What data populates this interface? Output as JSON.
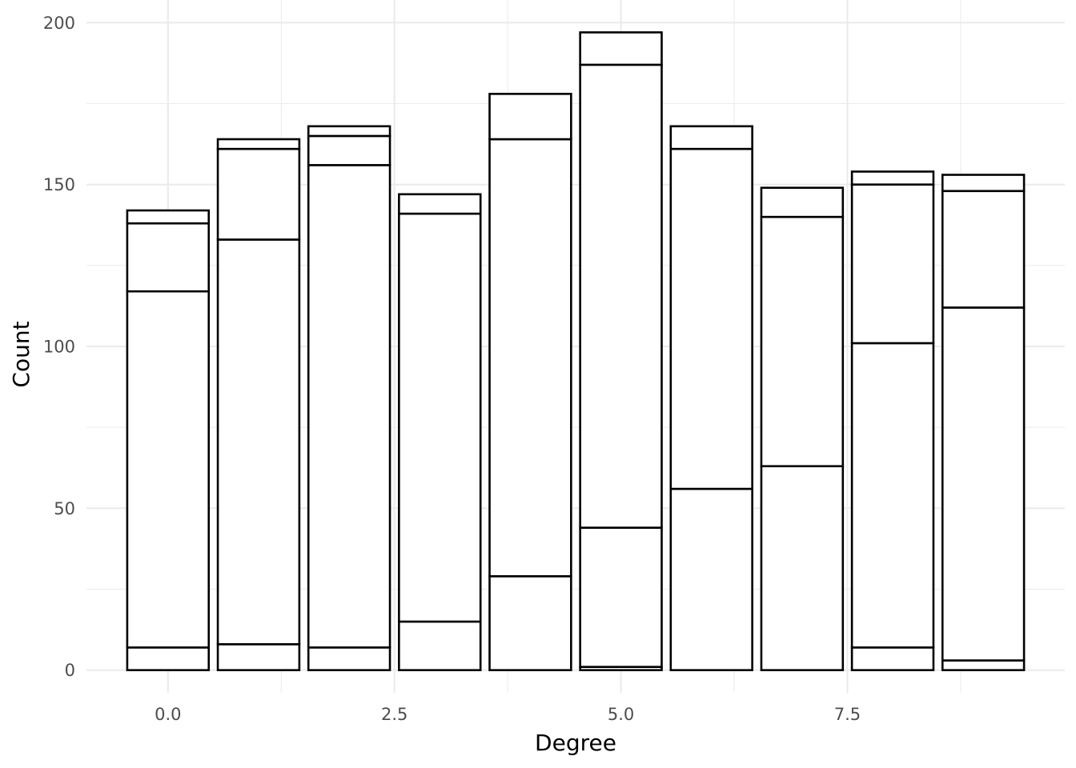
{
  "chart_data": {
    "type": "bar",
    "stacked": true,
    "xlabel": "Degree",
    "ylabel": "Count",
    "xlim": [
      -0.9,
      9.9
    ],
    "ylim": [
      -7,
      207
    ],
    "x_ticks": [
      "0.0",
      "2.5",
      "5.0",
      "7.5"
    ],
    "y_ticks": [
      "0",
      "50",
      "100",
      "150",
      "200"
    ],
    "grid": true,
    "legend": "none",
    "bar_fill": "#ffffff",
    "bar_outline": "#000000",
    "x": [
      0,
      1,
      2,
      3,
      4,
      5,
      6,
      7,
      8,
      9
    ],
    "stack_boundaries": [
      [
        0,
        7,
        117,
        138,
        142
      ],
      [
        0,
        8,
        133,
        161,
        164
      ],
      [
        0,
        7,
        156,
        165,
        168
      ],
      [
        0,
        15,
        141,
        147
      ],
      [
        0,
        29,
        164,
        178
      ],
      [
        0,
        1,
        44,
        187,
        197
      ],
      [
        0,
        56,
        161,
        168
      ],
      [
        0,
        63,
        140,
        149
      ],
      [
        0,
        7,
        101,
        150,
        154
      ],
      [
        0,
        3,
        112,
        148,
        153
      ]
    ]
  }
}
